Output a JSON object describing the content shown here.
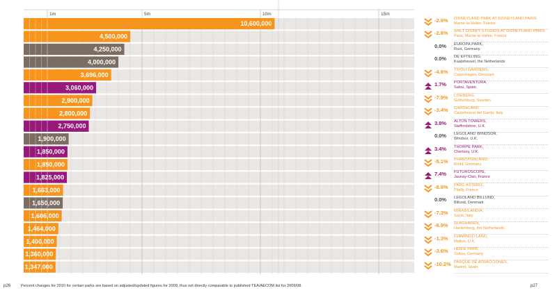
{
  "colors": {
    "orange": "#f7941d",
    "brown": "#7b6d61",
    "purple": "#97197a",
    "track": "#e9e6e3",
    "grid": "#d8d5d1"
  },
  "icons": {
    "down": "double-chevron-down-icon",
    "up": "triangle-up-icon",
    "none": ""
  },
  "chart_data": {
    "type": "bar",
    "orientation": "horizontal",
    "axis_ticks": [
      "1m",
      "5m",
      "10m",
      "15m"
    ],
    "axis_tick_values": [
      1000000,
      5000000,
      10000000,
      15000000
    ],
    "xlim": [
      0,
      16500000
    ],
    "grid": true,
    "bars": [
      {
        "value": 10600000,
        "label": "10,600,000",
        "color": "orange",
        "change": "-2.6%",
        "dir": "down",
        "park": "DISNEYLAND PARK AT Disneyland Paris",
        "location": "Marne-la-Vallée, France"
      },
      {
        "value": 4500000,
        "label": "4,500,000",
        "color": "orange",
        "change": "-2.6%",
        "dir": "down",
        "park": "WALT DISNEY STUDIOS AT Disneyland Paris",
        "location": "Paris, Marne-la-Vallée, France"
      },
      {
        "value": 4250000,
        "label": "4,250,000",
        "color": "brown",
        "change": "0.0%",
        "dir": "none",
        "park": "EUROPA PARK,",
        "location": "Rust, Germany"
      },
      {
        "value": 4000000,
        "label": "4,000,000",
        "color": "brown",
        "change": "0.0%",
        "dir": "none",
        "park": "DE EFTELING,",
        "location": "Kaatsheuvel, the Netherlands"
      },
      {
        "value": 3696000,
        "label": "3,696,000",
        "color": "orange",
        "change": "-4.6%",
        "dir": "down",
        "park": "TIVOLI GARDENS,",
        "location": "Copenhagen, Denmark"
      },
      {
        "value": 3060000,
        "label": "3,060,000",
        "color": "purple",
        "change": "1.7%",
        "dir": "up",
        "park": "PORTAVENTURA,",
        "location": "Salou, Spain"
      },
      {
        "value": 2900000,
        "label": "2,900,000",
        "color": "orange",
        "change": "-7.9%",
        "dir": "down",
        "park": "LISEBERG,",
        "location": "Gothenburg, Sweden"
      },
      {
        "value": 2800000,
        "label": "2,800,000",
        "color": "orange",
        "change": "-3.4%",
        "dir": "down",
        "park": "GARDALAND,",
        "location": "Castelnuovo del Garda, Italy"
      },
      {
        "value": 2750000,
        "label": "2,750,000",
        "color": "purple",
        "change": "3.8%",
        "dir": "up",
        "park": "ALTON TOWERS,",
        "location": "Staffordshire, U.K."
      },
      {
        "value": 1900000,
        "label": "1,900,000",
        "color": "brown",
        "change": "0.0%",
        "dir": "none",
        "park": "LEGOLAND WINDSOR,",
        "location": "Windsor, U.K."
      },
      {
        "value": 1850000,
        "label": "1,850,000",
        "color": "purple",
        "change": "3.4%",
        "dir": "up",
        "park": "THORPE PARK,",
        "location": "Chertsey, U.K."
      },
      {
        "value": 1850000,
        "label": "1,850,000",
        "color": "orange",
        "change": "-5.1%",
        "dir": "down",
        "park": "PHANTASIALAND,",
        "location": "Brühl, Germany"
      },
      {
        "value": 1825000,
        "label": "1,825,000",
        "color": "purple",
        "change": "7.4%",
        "dir": "up",
        "park": "FUTUROSCOPE,",
        "location": "Jaunay-Clan, France"
      },
      {
        "value": 1663000,
        "label": "1,663,000",
        "color": "orange",
        "change": "-8.6%",
        "dir": "down",
        "park": "PARC ASTERIX,",
        "location": "Plailly, France"
      },
      {
        "value": 1650000,
        "label": "1,650,000",
        "color": "brown",
        "change": "0.0%",
        "dir": "none",
        "park": "LEGOLAND BILLUND,",
        "location": "Billund, Denmark"
      },
      {
        "value": 1606000,
        "label": "1,606,000",
        "color": "orange",
        "change": "-7.3%",
        "dir": "down",
        "park": "MIRABILANDIA,",
        "location": "Savio, Italy"
      },
      {
        "value": 1464000,
        "label": "1,464,000",
        "color": "orange",
        "change": "-6.9%",
        "dir": "down",
        "park": "SLAGHAREN,",
        "location": "Hardenberg, the Netherlands"
      },
      {
        "value": 1400000,
        "label": "1,400,000",
        "color": "orange",
        "change": "-1.3%",
        "dir": "down",
        "park": "FLAMINGO LAND,",
        "location": "Malton, U.K."
      },
      {
        "value": 1360000,
        "label": "1,360,000",
        "color": "orange",
        "change": "-3.6%",
        "dir": "down",
        "park": "HEIDE PARK,",
        "location": "Soltau, Germany"
      },
      {
        "value": 1347000,
        "label": "1,347,000",
        "color": "orange",
        "change": "-10.2%",
        "dir": "down",
        "park": "PARQUE DE ATRACCIONES,",
        "location": "Madrid, Spain"
      }
    ]
  },
  "footer": {
    "page_left": "p26",
    "page_right": "p27",
    "note": "Percent changes for 2010 for certain parks are based on adjusted/updated figures for 2009, thus not directly comparable to published TEA/AECOM list for 2009/08."
  }
}
